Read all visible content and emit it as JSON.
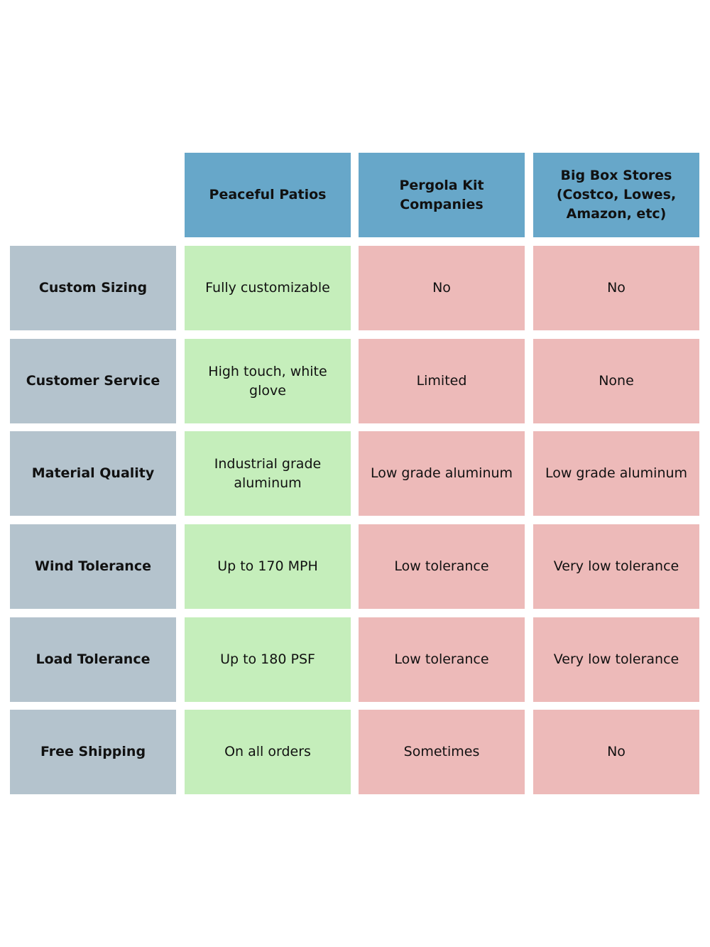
{
  "headers": [
    "Peaceful Patios",
    "Pergola Kit Companies",
    "Big Box Stores (Costco, Lowes, Amazon, etc)"
  ],
  "rows": [
    {
      "label": "Custom Sizing",
      "values": [
        "Fully customizable",
        "No",
        "No"
      ]
    },
    {
      "label": "Customer Service",
      "values": [
        "High touch, white glove",
        "Limited",
        "None"
      ]
    },
    {
      "label": "Material Quality",
      "values": [
        "Industrial grade aluminum",
        "Low grade aluminum",
        "Low grade aluminum"
      ]
    },
    {
      "label": "Wind Tolerance",
      "values": [
        "Up to 170 MPH",
        "Low tolerance",
        "Very low tolerance"
      ]
    },
    {
      "label": "Load Tolerance",
      "values": [
        "Up to 180 PSF",
        "Low tolerance",
        "Very low tolerance"
      ]
    },
    {
      "label": "Free Shipping",
      "values": [
        "On all orders",
        "Sometimes",
        "No"
      ]
    }
  ],
  "colors": {
    "header": "#67a7c9",
    "row_label": "#b4c3cd",
    "positive": "#c5eebb",
    "negative": "#edbab9"
  }
}
